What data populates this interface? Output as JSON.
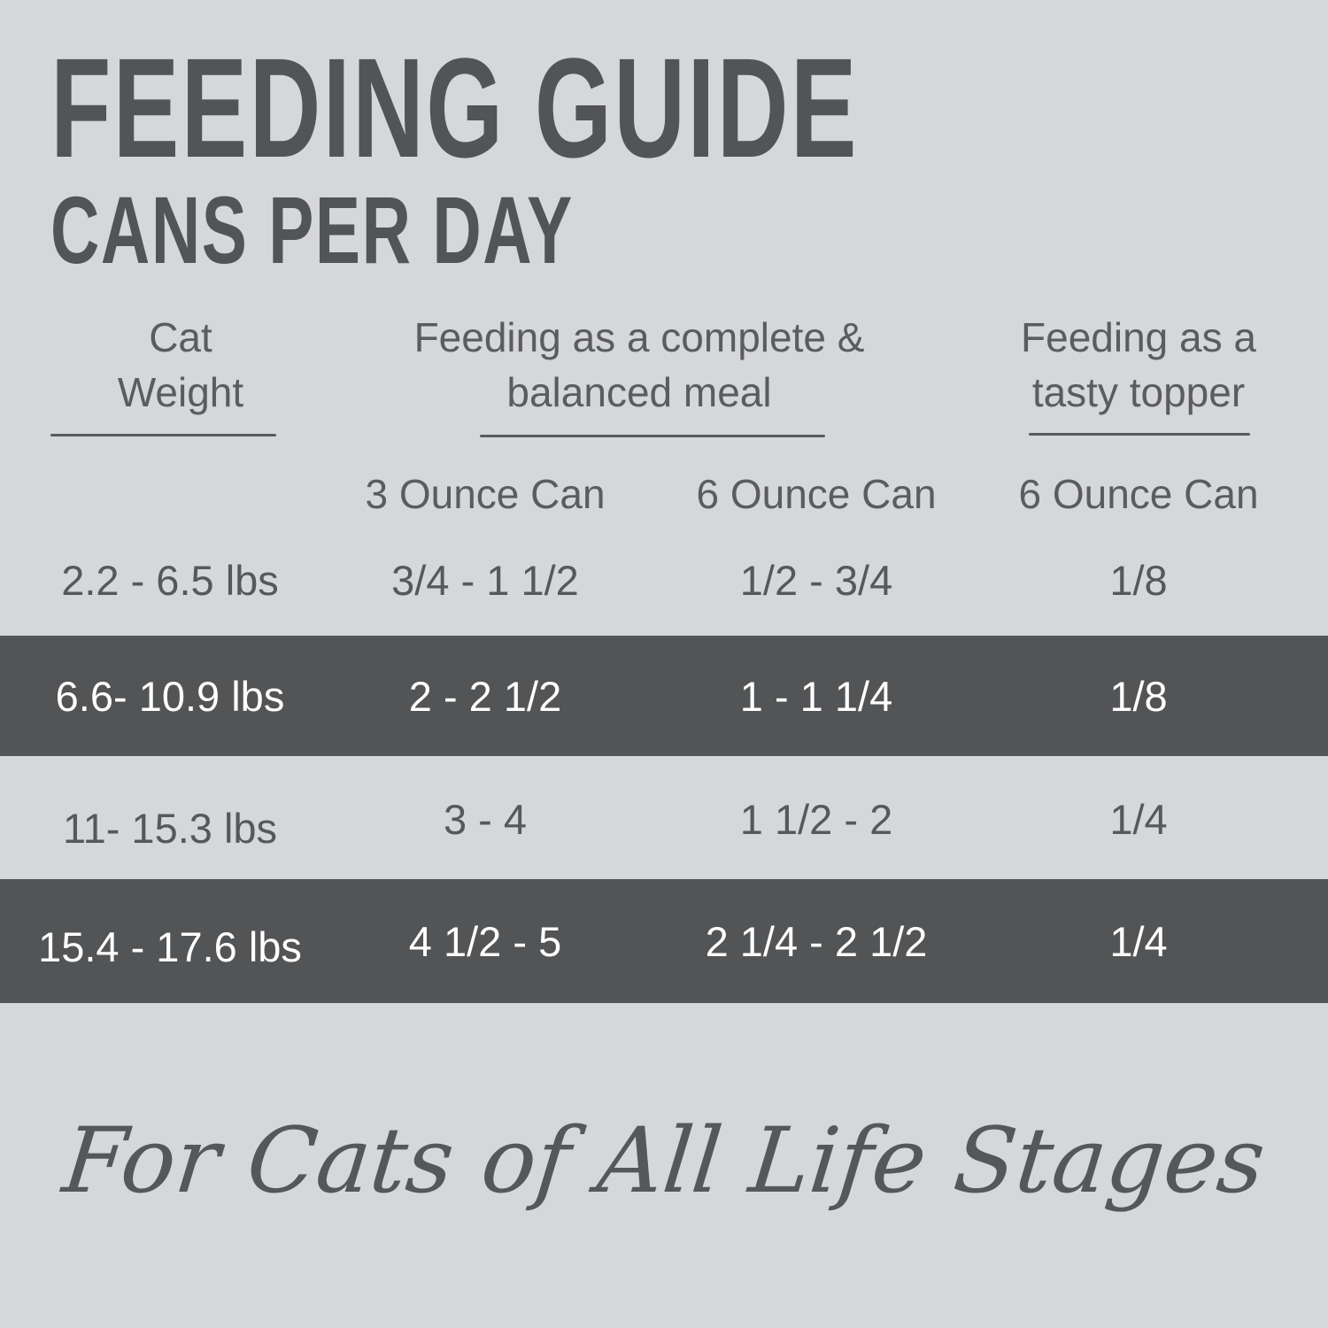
{
  "title": "FEEDING GUIDE",
  "subtitle": "CANS PER DAY",
  "table": {
    "column_groups": [
      {
        "lines": [
          "Cat",
          "Weight"
        ]
      },
      {
        "lines": [
          "Feeding as a complete &",
          "balanced meal"
        ]
      },
      {
        "lines": [
          "Feeding as a",
          "tasty topper"
        ]
      }
    ],
    "sub_headers": [
      "3 Ounce Can",
      "6 Ounce Can",
      "6 Ounce Can"
    ],
    "rows": [
      {
        "weight": "2.2 - 6.5 lbs",
        "values": [
          "3/4 - 1 1/2",
          "1/2 - 3/4",
          "1/8"
        ],
        "highlighted": false
      },
      {
        "weight": "6.6- 10.9 lbs",
        "values": [
          "2 - 2 1/2",
          "1 - 1 1/4",
          "1/8"
        ],
        "highlighted": true
      },
      {
        "weight": "11- 15.3 lbs",
        "values": [
          "3 - 4",
          "1 1/2 - 2",
          "1/4"
        ],
        "highlighted": false
      },
      {
        "weight": "15.4 - 17.6 lbs",
        "values": [
          "4 1/2 - 5",
          "2 1/4 - 2 1/2",
          "1/4"
        ],
        "highlighted": true
      }
    ]
  },
  "footer": {
    "tagline": "For Cats of All Life Stages"
  },
  "colors": {
    "background": "#d6d7d9",
    "highlight_band": "#535456",
    "text": "#56585b",
    "highlight_text": "#ffffff"
  }
}
